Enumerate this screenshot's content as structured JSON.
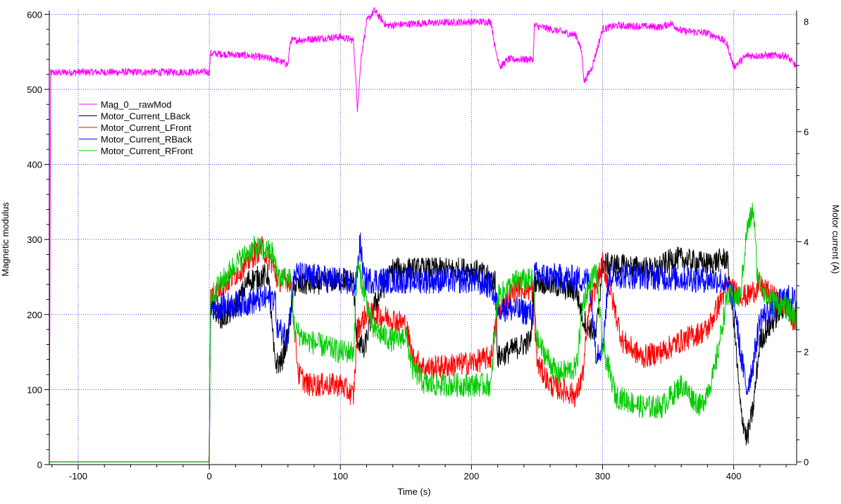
{
  "chart_data": {
    "type": "line",
    "title": "",
    "xlabel": "Time (s)",
    "ylabel_left": "Magnetic modulus",
    "ylabel_right": "Motor current (A)",
    "xlim": [
      -122,
      448
    ],
    "ylim_left": [
      0,
      605
    ],
    "ylim_right": [
      -0.05,
      8.2
    ],
    "x_ticks": [
      -100,
      0,
      100,
      200,
      300,
      400
    ],
    "x_tick_labels": [
      "-100",
      "0",
      "100",
      "200",
      "300",
      "400"
    ],
    "y_left_ticks": [
      0,
      100,
      200,
      300,
      400,
      500,
      600
    ],
    "y_left_tick_labels": [
      "0",
      "100",
      "200",
      "300",
      "400",
      "500",
      "600"
    ],
    "y_right_ticks": [
      0,
      2,
      4,
      6,
      8
    ],
    "y_right_tick_labels": [
      "0",
      "2",
      "4",
      "6",
      "8"
    ],
    "grid": true,
    "legend_position": "upper-left",
    "series": [
      {
        "name": "Mag_0__rawMod",
        "axis": "left",
        "color": "#ff00ff",
        "noise": 5,
        "points": [
          [
            -122,
            0
          ],
          [
            -121,
            522
          ],
          [
            -100,
            523
          ],
          [
            -50,
            523
          ],
          [
            0,
            523
          ],
          [
            1,
            548
          ],
          [
            30,
            545
          ],
          [
            50,
            540
          ],
          [
            60,
            533
          ],
          [
            62,
            565
          ],
          [
            100,
            570
          ],
          [
            110,
            565
          ],
          [
            113,
            475
          ],
          [
            116,
            545
          ],
          [
            120,
            590
          ],
          [
            126,
            605
          ],
          [
            135,
            585
          ],
          [
            160,
            588
          ],
          [
            200,
            590
          ],
          [
            215,
            590
          ],
          [
            218,
            555
          ],
          [
            222,
            530
          ],
          [
            228,
            540
          ],
          [
            247,
            540
          ],
          [
            248,
            585
          ],
          [
            280,
            572
          ],
          [
            284,
            550
          ],
          [
            286,
            510
          ],
          [
            292,
            530
          ],
          [
            300,
            580
          ],
          [
            310,
            585
          ],
          [
            330,
            584
          ],
          [
            345,
            583
          ],
          [
            352,
            588
          ],
          [
            360,
            578
          ],
          [
            380,
            575
          ],
          [
            390,
            568
          ],
          [
            395,
            560
          ],
          [
            400,
            530
          ],
          [
            410,
            545
          ],
          [
            440,
            545
          ],
          [
            448,
            530
          ]
        ]
      },
      {
        "name": "Motor_Current_LBack",
        "axis": "right",
        "color": "#000000",
        "noise": 0.22,
        "points": [
          [
            -122,
            0
          ],
          [
            0,
            0
          ],
          [
            1,
            2.9
          ],
          [
            10,
            2.6
          ],
          [
            20,
            2.8
          ],
          [
            30,
            3.3
          ],
          [
            45,
            3.4
          ],
          [
            48,
            2.4
          ],
          [
            50,
            1.8
          ],
          [
            55,
            1.8
          ],
          [
            60,
            2.3
          ],
          [
            65,
            3.2
          ],
          [
            100,
            3.3
          ],
          [
            110,
            3.3
          ],
          [
            112,
            2.3
          ],
          [
            118,
            2.0
          ],
          [
            125,
            2.8
          ],
          [
            140,
            3.5
          ],
          [
            160,
            3.5
          ],
          [
            200,
            3.5
          ],
          [
            218,
            3.3
          ],
          [
            220,
            1.9
          ],
          [
            245,
            2.2
          ],
          [
            248,
            3.3
          ],
          [
            280,
            3.1
          ],
          [
            285,
            2.6
          ],
          [
            295,
            2.3
          ],
          [
            300,
            3.6
          ],
          [
            340,
            3.5
          ],
          [
            355,
            3.7
          ],
          [
            380,
            3.6
          ],
          [
            395,
            3.7
          ],
          [
            400,
            2.6
          ],
          [
            405,
            1.0
          ],
          [
            410,
            0.4
          ],
          [
            415,
            1.0
          ],
          [
            420,
            2.2
          ],
          [
            440,
            2.9
          ],
          [
            448,
            2.5
          ]
        ]
      },
      {
        "name": "Motor_Current_LFront",
        "axis": "right",
        "color": "#ff0000",
        "noise": 0.22,
        "points": [
          [
            -122,
            0
          ],
          [
            0,
            0
          ],
          [
            1,
            3.0
          ],
          [
            20,
            3.4
          ],
          [
            40,
            3.9
          ],
          [
            48,
            3.6
          ],
          [
            52,
            3.3
          ],
          [
            62,
            3.3
          ],
          [
            68,
            1.6
          ],
          [
            75,
            1.4
          ],
          [
            100,
            1.4
          ],
          [
            110,
            1.2
          ],
          [
            113,
            2.4
          ],
          [
            120,
            2.7
          ],
          [
            140,
            2.6
          ],
          [
            150,
            2.5
          ],
          [
            155,
            1.9
          ],
          [
            165,
            1.7
          ],
          [
            200,
            1.8
          ],
          [
            215,
            1.9
          ],
          [
            220,
            2.7
          ],
          [
            235,
            3.2
          ],
          [
            247,
            3.1
          ],
          [
            250,
            1.8
          ],
          [
            260,
            1.4
          ],
          [
            280,
            1.2
          ],
          [
            285,
            1.6
          ],
          [
            290,
            2.8
          ],
          [
            300,
            3.6
          ],
          [
            305,
            3.2
          ],
          [
            315,
            2.2
          ],
          [
            330,
            1.9
          ],
          [
            345,
            2.0
          ],
          [
            360,
            2.2
          ],
          [
            380,
            2.4
          ],
          [
            395,
            3.2
          ],
          [
            400,
            3.1
          ],
          [
            410,
            3.0
          ],
          [
            420,
            3.2
          ],
          [
            440,
            2.8
          ],
          [
            448,
            2.5
          ]
        ]
      },
      {
        "name": "Motor_Current_RBack",
        "axis": "right",
        "color": "#0000ff",
        "noise": 0.25,
        "points": [
          [
            -122,
            0
          ],
          [
            0,
            0
          ],
          [
            1,
            2.8
          ],
          [
            30,
            2.9
          ],
          [
            50,
            3.0
          ],
          [
            52,
            2.4
          ],
          [
            60,
            2.3
          ],
          [
            65,
            3.4
          ],
          [
            100,
            3.3
          ],
          [
            112,
            3.2
          ],
          [
            115,
            4.0
          ],
          [
            118,
            3.3
          ],
          [
            200,
            3.3
          ],
          [
            215,
            3.2
          ],
          [
            220,
            2.8
          ],
          [
            225,
            2.8
          ],
          [
            247,
            2.7
          ],
          [
            248,
            3.4
          ],
          [
            290,
            3.3
          ],
          [
            295,
            2.0
          ],
          [
            300,
            2.1
          ],
          [
            305,
            3.4
          ],
          [
            390,
            3.3
          ],
          [
            400,
            3.0
          ],
          [
            405,
            2.0
          ],
          [
            410,
            1.3
          ],
          [
            415,
            1.8
          ],
          [
            420,
            2.6
          ],
          [
            440,
            3.0
          ],
          [
            448,
            2.9
          ]
        ]
      },
      {
        "name": "Motor_Current_RFront",
        "axis": "right",
        "color": "#00cc00",
        "noise": 0.22,
        "points": [
          [
            -122,
            0
          ],
          [
            0,
            0
          ],
          [
            1,
            3.0
          ],
          [
            20,
            3.6
          ],
          [
            35,
            3.9
          ],
          [
            48,
            3.8
          ],
          [
            52,
            3.4
          ],
          [
            62,
            3.3
          ],
          [
            65,
            2.4
          ],
          [
            75,
            2.2
          ],
          [
            100,
            2.0
          ],
          [
            110,
            2.0
          ],
          [
            113,
            3.6
          ],
          [
            125,
            2.4
          ],
          [
            140,
            2.2
          ],
          [
            150,
            2.3
          ],
          [
            155,
            1.7
          ],
          [
            165,
            1.4
          ],
          [
            200,
            1.4
          ],
          [
            215,
            1.4
          ],
          [
            220,
            3.0
          ],
          [
            235,
            3.3
          ],
          [
            247,
            3.3
          ],
          [
            250,
            2.2
          ],
          [
            265,
            1.6
          ],
          [
            280,
            1.7
          ],
          [
            285,
            2.9
          ],
          [
            295,
            3.5
          ],
          [
            300,
            2.1
          ],
          [
            310,
            1.2
          ],
          [
            330,
            1.0
          ],
          [
            345,
            1.0
          ],
          [
            360,
            1.4
          ],
          [
            375,
            1.0
          ],
          [
            385,
            1.6
          ],
          [
            395,
            3.0
          ],
          [
            405,
            3.0
          ],
          [
            410,
            4.2
          ],
          [
            415,
            4.6
          ],
          [
            418,
            3.4
          ],
          [
            425,
            3.0
          ],
          [
            440,
            2.8
          ],
          [
            448,
            2.6
          ]
        ]
      }
    ]
  }
}
